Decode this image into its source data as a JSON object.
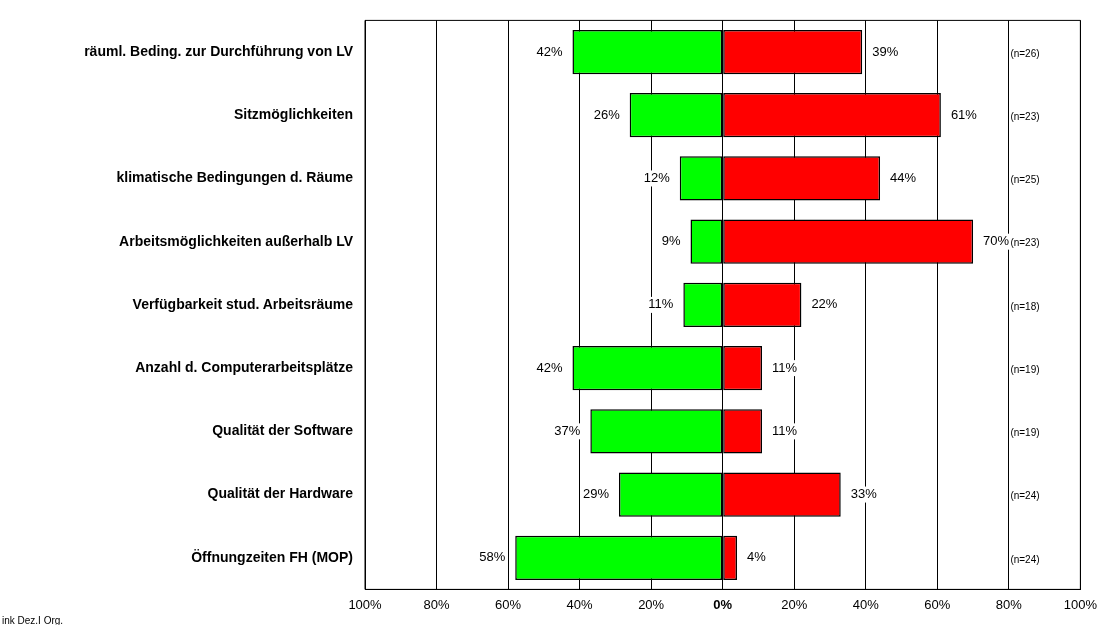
{
  "chart_data": {
    "type": "bar",
    "orientation": "horizontal",
    "grid": "x",
    "legend": false,
    "categories": [
      "räuml. Beding. zur Durchführung von LV",
      "Sitzmöglichkeiten",
      "klimatische Bedingungen d. Räume",
      "Arbeitsmöglichkeiten außerhalb LV",
      "Verfügbarkeit stud. Arbeitsräume",
      "Anzahl d. Computerarbeitsplätze",
      "Qualität der Software",
      "Qualität der Hardware",
      "Öffnungzeiten FH (MOP)"
    ],
    "series": [
      {
        "color": "#00ff00",
        "base": [
          -42,
          -26,
          -12,
          -9,
          -11,
          -42,
          -37,
          -29,
          -58
        ],
        "values": [
          42,
          26,
          12,
          9,
          11,
          42,
          37,
          29,
          58
        ],
        "value_labels": [
          "42%",
          "26%",
          "12%",
          "9%",
          "11%",
          "42%",
          "37%",
          "29%",
          "58%"
        ]
      },
      {
        "color": "#ff0000",
        "values": [
          39,
          61,
          44,
          70,
          22,
          11,
          11,
          33,
          4
        ],
        "value_labels": [
          "39%",
          "61%",
          "44%",
          "70%",
          "22%",
          "11%",
          "11%",
          "33%",
          "4%"
        ]
      }
    ],
    "xlim": [
      -100,
      100
    ],
    "xticks": [
      {
        "value": -100,
        "label": "100%"
      },
      {
        "value": -80,
        "label": "80%"
      },
      {
        "value": -60,
        "label": "60%"
      },
      {
        "value": -40,
        "label": "40%"
      },
      {
        "value": -20,
        "label": "20%"
      },
      {
        "value": 0,
        "label": "0%"
      },
      {
        "value": 20,
        "label": "20%"
      },
      {
        "value": 40,
        "label": "40%"
      },
      {
        "value": 60,
        "label": "60%"
      },
      {
        "value": 80,
        "label": "80%"
      },
      {
        "value": 100,
        "label": "100%"
      }
    ],
    "annotations": [
      "(n=26)",
      "(n=23)",
      "(n=25)",
      "(n=23)",
      "(n=18)",
      "(n=19)",
      "(n=19)",
      "(n=24)",
      "(n=24)",
      "ink Dez.I Org."
    ]
  }
}
